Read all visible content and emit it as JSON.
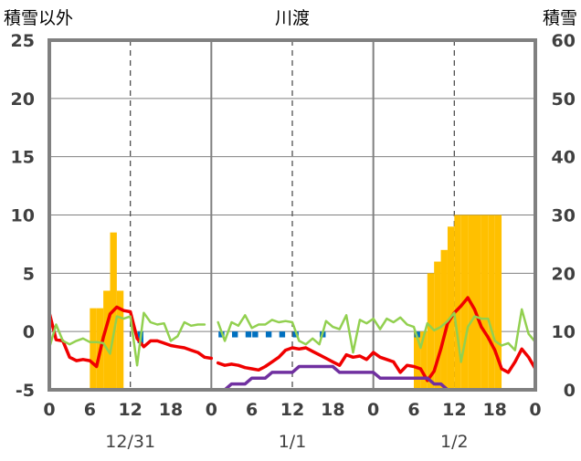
{
  "chart_data": {
    "type": "bar+line",
    "title": "川渡",
    "left_axis": {
      "label": "積雪以外",
      "ticks": [
        25,
        20,
        15,
        10,
        5,
        0,
        -5
      ],
      "range": [
        -5,
        25
      ]
    },
    "right_axis": {
      "label": "積雪",
      "ticks": [
        60,
        50,
        40,
        30,
        20,
        10,
        0
      ],
      "range": [
        0,
        60
      ]
    },
    "x_ticks": [
      "0",
      "6",
      "12",
      "18",
      "0",
      "6",
      "12",
      "18",
      "0",
      "6",
      "12",
      "18",
      "0"
    ],
    "date_labels": [
      "12/31",
      "1/1",
      "1/2"
    ],
    "grid": "dashed verticals at 12h, solid verticals at day boundaries, solid horizontal gridlines",
    "snow_depth_bars_right_axis": [
      {
        "hour": 7,
        "value": 14
      },
      {
        "hour": 8,
        "value": 14
      },
      {
        "hour": 9,
        "value": 17
      },
      {
        "hour": 10,
        "value": 27
      },
      {
        "hour": 11,
        "value": 17
      },
      {
        "hour": 55,
        "value": 10
      },
      {
        "hour": 56,
        "value": 10
      },
      {
        "hour": 57,
        "value": 20
      },
      {
        "hour": 58,
        "value": 22
      },
      {
        "hour": 59,
        "value": 24
      },
      {
        "hour": 60,
        "value": 28
      },
      {
        "hour": 61,
        "value": 30
      },
      {
        "hour": 62,
        "value": 30
      },
      {
        "hour": 63,
        "value": 30
      },
      {
        "hour": 64,
        "value": 30
      },
      {
        "hour": 65,
        "value": 30
      },
      {
        "hour": 66,
        "value": 30
      },
      {
        "hour": 67,
        "value": 30
      }
    ],
    "precip_bars_left_axis": [
      {
        "hour": 14,
        "value": -1.0
      },
      {
        "hour": 26,
        "value": -0.5
      },
      {
        "hour": 28,
        "value": -0.5
      },
      {
        "hour": 30,
        "value": -0.5
      },
      {
        "hour": 31,
        "value": -0.5
      },
      {
        "hour": 33,
        "value": -0.5
      },
      {
        "hour": 35,
        "value": -0.5
      },
      {
        "hour": 37,
        "value": -0.5
      },
      {
        "hour": 41,
        "value": -0.5
      },
      {
        "hour": 55,
        "value": -0.5
      }
    ],
    "series": [
      {
        "color": "#f00000",
        "points": [
          [
            0,
            1.6
          ],
          [
            1,
            -0.7
          ],
          [
            2,
            -0.8
          ],
          [
            3,
            -2.2
          ],
          [
            4,
            -2.5
          ],
          [
            5,
            -2.4
          ],
          [
            6,
            -2.5
          ],
          [
            7,
            -3.0
          ],
          [
            8,
            -0.5
          ],
          [
            9,
            1.5
          ],
          [
            10,
            2.1
          ],
          [
            11,
            1.8
          ],
          [
            12,
            1.7
          ],
          [
            13,
            -0.6
          ],
          [
            14,
            -1.3
          ],
          [
            15,
            -0.8
          ],
          [
            16,
            -0.8
          ],
          [
            17,
            -1.0
          ],
          [
            18,
            -1.2
          ],
          [
            19,
            -1.3
          ],
          [
            20,
            -1.4
          ],
          [
            21,
            -1.6
          ],
          [
            22,
            -1.8
          ],
          [
            23,
            -2.2
          ],
          [
            24,
            -2.3
          ],
          null,
          [
            25,
            -2.7
          ],
          [
            26,
            -2.9
          ],
          [
            27,
            -2.8
          ],
          [
            28,
            -2.9
          ],
          [
            29,
            -3.1
          ],
          [
            30,
            -3.2
          ],
          [
            31,
            -3.3
          ],
          [
            32,
            -3.0
          ],
          [
            33,
            -2.6
          ],
          [
            34,
            -2.2
          ],
          [
            35,
            -1.6
          ],
          [
            36,
            -1.4
          ],
          [
            37,
            -1.5
          ],
          [
            38,
            -1.4
          ],
          [
            39,
            -1.7
          ],
          [
            40,
            -2.0
          ],
          [
            41,
            -2.3
          ],
          [
            42,
            -2.6
          ],
          [
            43,
            -2.9
          ],
          [
            44,
            -2.0
          ],
          [
            45,
            -2.2
          ],
          [
            46,
            -2.1
          ],
          [
            47,
            -2.4
          ],
          [
            48,
            -1.8
          ],
          [
            49,
            -2.2
          ],
          [
            50,
            -2.4
          ],
          [
            51,
            -2.6
          ],
          [
            52,
            -3.5
          ],
          [
            53,
            -2.9
          ],
          [
            54,
            -3.0
          ],
          [
            55,
            -3.2
          ],
          [
            56,
            -4.2
          ],
          [
            57,
            -3.4
          ],
          [
            58,
            -1.5
          ],
          [
            59,
            0.7
          ],
          [
            60,
            1.6
          ],
          [
            61,
            2.2
          ],
          [
            62,
            2.9
          ],
          [
            63,
            1.9
          ],
          [
            64,
            0.4
          ],
          [
            65,
            -0.5
          ],
          [
            66,
            -1.6
          ],
          [
            67,
            -3.2
          ],
          [
            68,
            -3.5
          ],
          [
            69,
            -2.6
          ],
          [
            70,
            -1.5
          ],
          [
            71,
            -2.2
          ],
          [
            72,
            -3.2
          ]
        ]
      },
      {
        "color": "#92d050",
        "points": [
          [
            0,
            -1.4
          ],
          [
            1,
            0.6
          ],
          [
            2,
            -0.8
          ],
          [
            3,
            -1.1
          ],
          [
            4,
            -0.8
          ],
          [
            5,
            -0.6
          ],
          [
            6,
            -0.9
          ],
          [
            7,
            -0.9
          ],
          [
            8,
            -1.0
          ],
          [
            9,
            -1.9
          ],
          [
            10,
            1.3
          ],
          [
            11,
            1.1
          ],
          [
            12,
            1.3
          ],
          [
            13,
            -2.9
          ],
          [
            14,
            1.6
          ],
          [
            15,
            0.8
          ],
          [
            16,
            0.6
          ],
          [
            17,
            0.7
          ],
          [
            18,
            -0.8
          ],
          [
            19,
            -0.4
          ],
          [
            20,
            0.8
          ],
          [
            21,
            0.5
          ],
          [
            22,
            0.6
          ],
          [
            23,
            0.6
          ],
          null,
          [
            25,
            0.8
          ],
          [
            26,
            -0.8
          ],
          [
            27,
            0.8
          ],
          [
            28,
            0.5
          ],
          [
            29,
            1.4
          ],
          [
            30,
            0.3
          ],
          [
            31,
            0.6
          ],
          [
            32,
            0.6
          ],
          [
            33,
            1.0
          ],
          [
            34,
            0.8
          ],
          [
            35,
            0.9
          ],
          [
            36,
            0.8
          ],
          [
            37,
            -0.8
          ],
          [
            38,
            -1.1
          ],
          [
            39,
            -0.6
          ],
          [
            40,
            -1.1
          ],
          [
            41,
            0.9
          ],
          [
            42,
            0.4
          ],
          [
            43,
            0.2
          ],
          [
            44,
            1.4
          ],
          [
            45,
            -1.8
          ],
          [
            46,
            1.0
          ],
          [
            47,
            0.7
          ],
          [
            48,
            1.1
          ],
          [
            49,
            0.2
          ],
          [
            50,
            1.1
          ],
          [
            51,
            0.8
          ],
          [
            52,
            1.2
          ],
          [
            53,
            0.6
          ],
          [
            54,
            0.4
          ],
          [
            55,
            -1.4
          ],
          [
            56,
            0.7
          ],
          [
            57,
            0.1
          ],
          [
            58,
            0.4
          ],
          [
            59,
            0.9
          ],
          [
            60,
            1.6
          ],
          [
            61,
            -2.6
          ],
          [
            62,
            0.4
          ],
          [
            63,
            1.3
          ],
          [
            64,
            1.1
          ],
          [
            65,
            1.1
          ],
          [
            66,
            -0.8
          ],
          [
            67,
            -1.2
          ],
          [
            68,
            -1.0
          ],
          [
            69,
            -1.6
          ],
          [
            70,
            1.9
          ],
          [
            71,
            -0.2
          ],
          [
            72,
            -0.9
          ]
        ]
      },
      {
        "color": "#7030a0",
        "points": [
          [
            0,
            -5.0
          ],
          [
            24,
            -5.0
          ],
          null,
          [
            25,
            -5.0
          ],
          [
            26,
            -5.0
          ],
          [
            27,
            -4.5
          ],
          [
            28,
            -4.5
          ],
          [
            29,
            -4.5
          ],
          [
            30,
            -4.0
          ],
          [
            31,
            -4.0
          ],
          [
            32,
            -4.0
          ],
          [
            33,
            -3.5
          ],
          [
            34,
            -3.5
          ],
          [
            35,
            -3.5
          ],
          [
            36,
            -3.5
          ],
          [
            37,
            -3.0
          ],
          [
            38,
            -3.0
          ],
          [
            39,
            -3.0
          ],
          [
            40,
            -3.0
          ],
          [
            41,
            -3.0
          ],
          [
            42,
            -3.0
          ],
          [
            43,
            -3.5
          ],
          [
            44,
            -3.5
          ],
          [
            45,
            -3.5
          ],
          [
            46,
            -3.5
          ],
          [
            47,
            -3.5
          ],
          [
            48,
            -3.5
          ],
          [
            49,
            -4.0
          ],
          [
            50,
            -4.0
          ],
          [
            51,
            -4.0
          ],
          [
            52,
            -4.0
          ],
          [
            53,
            -4.0
          ],
          [
            54,
            -4.0
          ],
          [
            55,
            -4.0
          ],
          [
            56,
            -4.0
          ],
          [
            57,
            -4.5
          ],
          [
            58,
            -4.5
          ],
          [
            59,
            -5.0
          ],
          [
            72,
            -5.0
          ]
        ]
      }
    ]
  }
}
